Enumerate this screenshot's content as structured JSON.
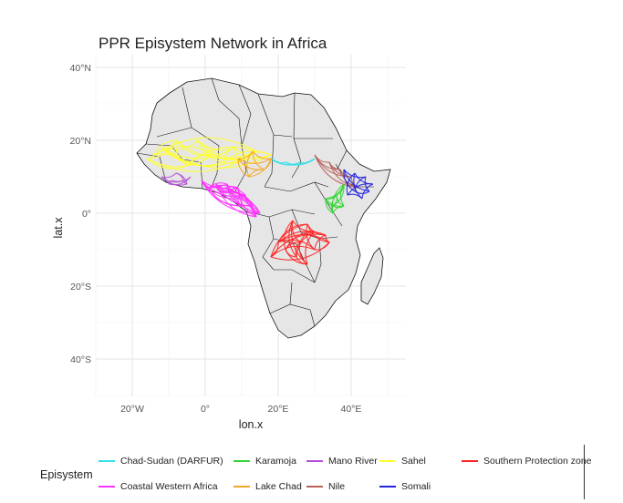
{
  "title": "PPR Episystem Network in Africa",
  "axes": {
    "xlabel": "lon.x",
    "ylabel": "lat.x",
    "x_ticks": [
      {
        "value": -20,
        "label": "20°W"
      },
      {
        "value": 0,
        "label": "0°"
      },
      {
        "value": 20,
        "label": "20°E"
      },
      {
        "value": 40,
        "label": "40°E"
      }
    ],
    "y_ticks": [
      {
        "value": 40,
        "label": "40°N"
      },
      {
        "value": 20,
        "label": "20°N"
      },
      {
        "value": 0,
        "label": "0°"
      },
      {
        "value": -20,
        "label": "20°S"
      },
      {
        "value": -40,
        "label": "40°S"
      }
    ],
    "xlim": [
      -30,
      55
    ],
    "ylim": [
      -50,
      42
    ]
  },
  "legend": {
    "title": "Episystem",
    "entries": [
      {
        "name": "Chad-Sudan (DARFUR)",
        "color": "#35e0e8"
      },
      {
        "name": "Coastal Western Africa",
        "color": "#ff33ff"
      },
      {
        "name": "Karamoja",
        "color": "#33d633"
      },
      {
        "name": "Lake Chad",
        "color": "#f5a623"
      },
      {
        "name": "Mano River",
        "color": "#b44fd6"
      },
      {
        "name": "Nile",
        "color": "#b8615a"
      },
      {
        "name": "Sahel",
        "color": "#ffff33"
      },
      {
        "name": "Somali",
        "color": "#2222dd"
      },
      {
        "name": "Southern Protection zone",
        "color": "#ff2222"
      }
    ]
  },
  "map": {
    "land_color": "#e6e6e6",
    "border_color": "#000000",
    "grid": true
  },
  "networks": [
    {
      "episystem": "Sahel",
      "color": "#ffff33",
      "nodes": [
        [
          -16,
          15
        ],
        [
          -12,
          18
        ],
        [
          -8,
          20
        ],
        [
          -2,
          20
        ],
        [
          2,
          16
        ],
        [
          8,
          18
        ],
        [
          14,
          17
        ],
        [
          18,
          16
        ],
        [
          -5,
          13
        ],
        [
          5,
          14
        ],
        [
          -14,
          16
        ],
        [
          10,
          15
        ]
      ]
    },
    {
      "episystem": "Chad-Sudan (DARFUR)",
      "color": "#35e0e8",
      "nodes": [
        [
          18,
          15
        ],
        [
          22,
          14
        ],
        [
          26,
          14
        ],
        [
          30,
          15
        ]
      ]
    },
    {
      "episystem": "Lake Chad",
      "color": "#f5a623",
      "nodes": [
        [
          9,
          15
        ],
        [
          13,
          17
        ],
        [
          16,
          12
        ],
        [
          12,
          10
        ],
        [
          18,
          15
        ]
      ]
    },
    {
      "episystem": "Mano River",
      "color": "#b44fd6",
      "nodes": [
        [
          -12,
          10
        ],
        [
          -9,
          9
        ],
        [
          -6,
          9
        ],
        [
          -10,
          8
        ],
        [
          -5,
          8
        ],
        [
          -4,
          10
        ],
        [
          -8,
          11
        ]
      ]
    },
    {
      "episystem": "Coastal Western Africa",
      "color": "#ff33ff",
      "nodes": [
        [
          -1,
          9
        ],
        [
          3,
          8
        ],
        [
          6,
          8
        ],
        [
          9,
          7
        ],
        [
          11,
          5
        ],
        [
          13,
          2
        ],
        [
          15,
          0
        ],
        [
          14,
          -1
        ],
        [
          9,
          4
        ],
        [
          4,
          6
        ],
        [
          1,
          7
        ],
        [
          7,
          6
        ],
        [
          10,
          2
        ]
      ]
    },
    {
      "episystem": "Nile",
      "color": "#b8615a",
      "nodes": [
        [
          30,
          16
        ],
        [
          34,
          14
        ],
        [
          37,
          12
        ],
        [
          40,
          10
        ],
        [
          42,
          7
        ]
      ]
    },
    {
      "episystem": "Somali",
      "color": "#2222dd",
      "nodes": [
        [
          38,
          12
        ],
        [
          41,
          11
        ],
        [
          44,
          10
        ],
        [
          46,
          8
        ],
        [
          41,
          6
        ],
        [
          43,
          4
        ],
        [
          45,
          6
        ],
        [
          39,
          5
        ]
      ]
    },
    {
      "episystem": "Karamoja",
      "color": "#33d633",
      "nodes": [
        [
          33,
          4
        ],
        [
          35,
          2
        ],
        [
          36,
          5
        ],
        [
          38,
          8
        ],
        [
          38,
          2
        ],
        [
          35,
          0
        ]
      ]
    },
    {
      "episystem": "Southern Protection zone",
      "color": "#ff2222",
      "nodes": [
        [
          24,
          -2
        ],
        [
          28,
          -3
        ],
        [
          30,
          -5
        ],
        [
          33,
          -6
        ],
        [
          26,
          -8
        ],
        [
          30,
          -10
        ],
        [
          22,
          -10
        ],
        [
          18,
          -12
        ],
        [
          25,
          -12
        ],
        [
          34,
          -8
        ],
        [
          28,
          -14
        ],
        [
          20,
          -8
        ]
      ]
    }
  ]
}
